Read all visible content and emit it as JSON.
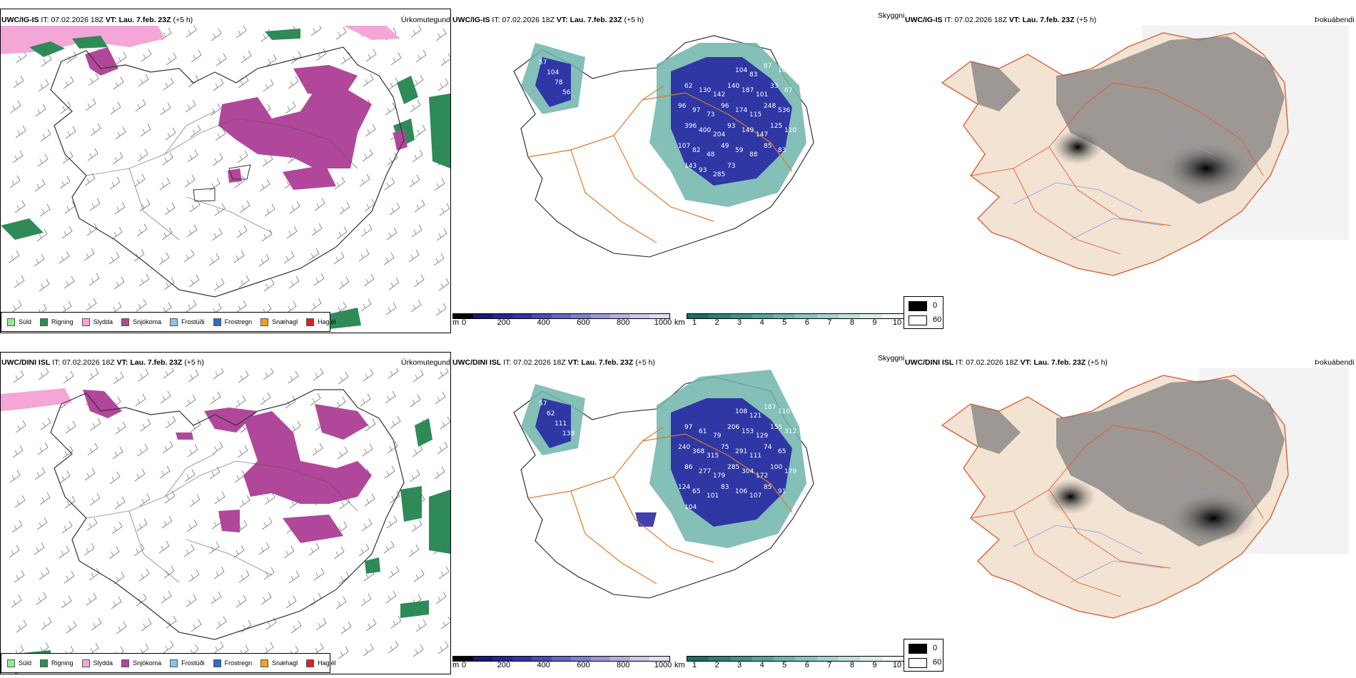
{
  "rows": [
    {
      "model": "UWC/IG-IS",
      "it_label": "IT:",
      "it_value": "07.02.2026 18Z",
      "vt_label": "VT:",
      "vt_value": "Lau. 7.feb. 23Z",
      "offset": "(+5 h)",
      "var_precip": "Úrkomutegund",
      "var_vis": "Skyggni",
      "var_cloud": "Þokuábendi",
      "height_labels": [
        "57",
        "104",
        "78",
        "56",
        "104",
        "83",
        "87",
        "102",
        "62",
        "130",
        "142",
        "140",
        "187",
        "101",
        "33",
        "67",
        "96",
        "97",
        "73",
        "96",
        "174",
        "115",
        "248",
        "536",
        "396",
        "400",
        "204",
        "93",
        "149",
        "147",
        "125",
        "110",
        "107",
        "82",
        "48",
        "49",
        "59",
        "88",
        "85",
        "83",
        "143",
        "93",
        "285",
        "73"
      ]
    },
    {
      "model": "UWC/DINI ISL",
      "it_label": "IT:",
      "it_value": "07.02.2026 18Z",
      "vt_label": "VT:",
      "vt_value": "Lau. 7.feb. 23Z",
      "offset": "(+5 h)",
      "var_precip": "Úrkomutegund",
      "var_vis": "Skyggni",
      "var_cloud": "Þokuábendi",
      "height_labels": [
        "57",
        "62",
        "111",
        "138",
        "108",
        "121",
        "187",
        "110",
        "97",
        "61",
        "79",
        "206",
        "153",
        "129",
        "155",
        "312",
        "240",
        "368",
        "315",
        "75",
        "291",
        "111",
        "74",
        "65",
        "86",
        "277",
        "179",
        "285",
        "304",
        "172",
        "100",
        "179",
        "124",
        "65",
        "101",
        "83",
        "106",
        "107",
        "85",
        "91",
        "104"
      ]
    }
  ],
  "precip_legend": [
    {
      "label": "Súld",
      "color": "#90ee90"
    },
    {
      "label": "Rigning",
      "color": "#2e8b57"
    },
    {
      "label": "Slydda",
      "color": "#f4a6d7"
    },
    {
      "label": "Snjókoma",
      "color": "#b0479b"
    },
    {
      "label": "Frostúði",
      "color": "#8ec2ee"
    },
    {
      "label": "Frostregn",
      "color": "#2f6fc0"
    },
    {
      "label": "Snæhagl",
      "color": "#f0a020"
    },
    {
      "label": "Haglél",
      "color": "#e02020"
    }
  ],
  "height_bar": {
    "unit": "m",
    "ticks": [
      "0",
      "200",
      "400",
      "600",
      "800",
      "1000"
    ],
    "colors": [
      "#000000",
      "#1a1a6e",
      "#26268f",
      "#3333a6",
      "#4b4bb4",
      "#6666c0",
      "#7e7ecb",
      "#9898d5",
      "#b0b0df",
      "#c8c8ea",
      "#dedef3"
    ]
  },
  "vis_bar": {
    "unit": "km",
    "ticks": [
      "1",
      "2",
      "3",
      "4",
      "5",
      "6",
      "7",
      "8",
      "9",
      "10"
    ],
    "colors": [
      "#1e6b66",
      "#2f7f78",
      "#3f918a",
      "#55a39b",
      "#6fb4ac",
      "#8ac3bd",
      "#a5d2cd",
      "#c0e0dc",
      "#d9edea",
      "#f0f8f7"
    ]
  },
  "cloud_legend": {
    "high": "0",
    "low": "60"
  },
  "colors": {
    "frame": "#000000",
    "coast": "#333333",
    "land_fog": "#f3e3d3",
    "road": "#e07a2c",
    "river": "#7f9ee6",
    "rain": "#2e8b57",
    "snow": "#b0479b",
    "sleet": "#f4a6d7",
    "deep": "#1f1fa0",
    "teal": "#3e9a8e"
  }
}
